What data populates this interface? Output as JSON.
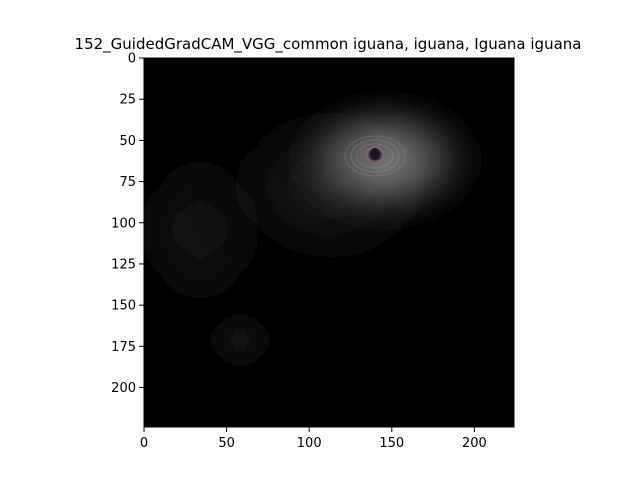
{
  "title": "152_GuidedGradCAM_VGG_common iguana, iguana, Iguana iguana",
  "axes": {
    "x_ticks": [
      "0",
      "50",
      "100",
      "150",
      "200"
    ],
    "y_ticks": [
      "0",
      "25",
      "50",
      "75",
      "100",
      "125",
      "150",
      "175",
      "200"
    ]
  },
  "image": {
    "size": [
      224,
      224
    ],
    "description_colors": {
      "background": "#000000",
      "highlight": "#9a9a9a",
      "eye_ring": "#7a5a6a",
      "eye_pupil": "#2a2440"
    }
  }
}
